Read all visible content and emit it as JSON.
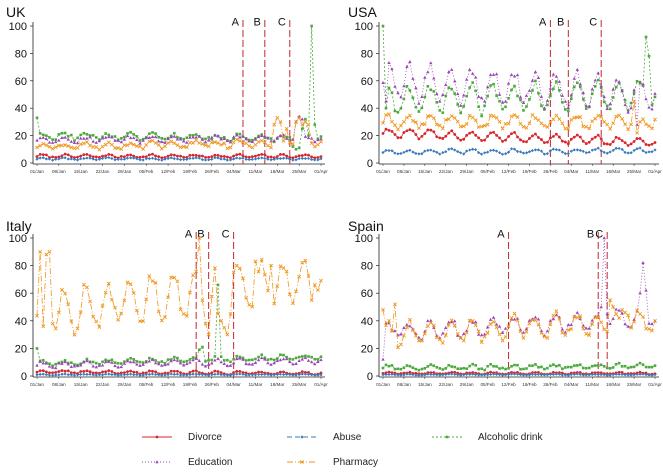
{
  "chart_data": [
    {
      "type": "line",
      "title": "UK",
      "ylim": [
        0,
        100
      ],
      "yticks": [
        0,
        20,
        40,
        60,
        80,
        100
      ],
      "xlabels": [
        "01/Jan",
        "08/Jan",
        "15/Jan",
        "22/Jan",
        "29/Jan",
        "05/Feb",
        "12/Feb",
        "19/Feb",
        "26/Feb",
        "04/Mar",
        "11/Mar",
        "18/Mar",
        "25/Mar",
        "01/Apr"
      ],
      "events": [
        {
          "label": "A",
          "day": 66
        },
        {
          "label": "B",
          "day": 73
        },
        {
          "label": "C",
          "day": 81
        }
      ],
      "series": [
        {
          "key": "divorce",
          "start": 5,
          "end": 5,
          "amp": 1,
          "period": 7,
          "noise": 0.6
        },
        {
          "key": "abuse",
          "start": 3,
          "end": 3,
          "amp": 0.6,
          "period": 7,
          "noise": 0.4
        },
        {
          "key": "alcohol",
          "start": 20,
          "end": 18,
          "amp": 2,
          "period": 7,
          "noise": 1.5,
          "overrides": [
            [
              0,
              33
            ],
            [
              82,
              12
            ],
            [
              83,
              10
            ],
            [
              84,
              11
            ],
            [
              85,
              25
            ],
            [
              86,
              32
            ],
            [
              87,
              20
            ],
            [
              88,
              100
            ],
            [
              89,
              28
            ]
          ]
        },
        {
          "key": "education",
          "start": 17,
          "end": 18,
          "amp": 2,
          "period": 7,
          "noise": 1.2,
          "overrides": [
            [
              83,
              30
            ],
            [
              84,
              34
            ],
            [
              85,
              32
            ]
          ]
        },
        {
          "key": "pharmacy",
          "start": 12,
          "end": 15,
          "amp": 2,
          "period": 7,
          "noise": 1.5,
          "overrides": [
            [
              76,
              28
            ],
            [
              77,
              33
            ],
            [
              78,
              30
            ],
            [
              80,
              25
            ],
            [
              83,
              30
            ],
            [
              84,
              33
            ],
            [
              85,
              28
            ],
            [
              86,
              30
            ],
            [
              87,
              28
            ]
          ]
        }
      ]
    },
    {
      "type": "line",
      "title": "USA",
      "ylim": [
        0,
        100
      ],
      "yticks": [
        0,
        20,
        40,
        60,
        80,
        100
      ],
      "xlabels": [
        "01/Jan",
        "08/Jan",
        "15/Jan",
        "22/Jan",
        "29/Jan",
        "05/Feb",
        "12/Feb",
        "19/Feb",
        "26/Feb",
        "04/Mar",
        "11/Mar",
        "18/Mar",
        "25/Mar",
        "01/Apr"
      ],
      "events": [
        {
          "label": "A",
          "day": 56
        },
        {
          "label": "B",
          "day": 62
        },
        {
          "label": "C",
          "day": 73
        }
      ],
      "series": [
        {
          "key": "divorce",
          "start": 22,
          "end": 15,
          "amp": 3,
          "period": 7,
          "noise": 1
        },
        {
          "key": "abuse",
          "start": 8,
          "end": 9,
          "amp": 1.5,
          "period": 7,
          "noise": 0.8
        },
        {
          "key": "alcohol",
          "start": 45,
          "end": 50,
          "amp": 10,
          "period": 7,
          "noise": 3,
          "overrides": [
            [
              0,
              100
            ],
            [
              1,
              40
            ],
            [
              88,
              92
            ],
            [
              89,
              78
            ]
          ]
        },
        {
          "key": "education",
          "start": 60,
          "end": 50,
          "amp": 12,
          "period": 7,
          "noise": 4,
          "overrides": [
            [
              1,
              45
            ],
            [
              85,
              28
            ]
          ]
        },
        {
          "key": "pharmacy",
          "start": 30,
          "end": 30,
          "amp": 4,
          "period": 7,
          "noise": 2,
          "overrides": [
            [
              84,
              45
            ],
            [
              85,
              22
            ],
            [
              86,
              30
            ]
          ]
        }
      ]
    },
    {
      "type": "line",
      "title": "Italy",
      "ylim": [
        0,
        100
      ],
      "yticks": [
        0,
        20,
        40,
        60,
        80,
        100
      ],
      "xlabels": [
        "01/Jan",
        "08/Jan",
        "15/Jan",
        "22/Jan",
        "29/Jan",
        "05/Feb",
        "12/Feb",
        "19/Feb",
        "26/Feb",
        "04/Mar",
        "11/Mar",
        "18/Mar",
        "25/Mar",
        "01/Apr"
      ],
      "events": [
        {
          "label": "A",
          "day": 51
        },
        {
          "label": "B",
          "day": 55
        },
        {
          "label": "C",
          "day": 63
        }
      ],
      "series": [
        {
          "key": "divorce",
          "start": 3,
          "end": 2,
          "amp": 1,
          "period": 7,
          "noise": 0.5
        },
        {
          "key": "abuse",
          "start": 1,
          "end": 1,
          "amp": 0.3,
          "period": 7,
          "noise": 0.2
        },
        {
          "key": "alcohol",
          "start": 9,
          "end": 14,
          "amp": 1.5,
          "period": 7,
          "noise": 1,
          "overrides": [
            [
              0,
              20
            ],
            [
              1,
              11
            ],
            [
              52,
              19
            ],
            [
              53,
              21
            ],
            [
              58,
              66
            ],
            [
              59,
              14
            ]
          ]
        },
        {
          "key": "education",
          "start": 8,
          "end": 11,
          "amp": 2,
          "period": 7,
          "noise": 1
        },
        {
          "key": "pharmacy",
          "start": 45,
          "end": 72,
          "amp": 15,
          "period": 7,
          "noise": 5,
          "overrides": [
            [
              1,
              90
            ],
            [
              2,
              36
            ],
            [
              3,
              88
            ],
            [
              4,
              90
            ],
            [
              5,
              38
            ],
            [
              52,
              100
            ],
            [
              53,
              55
            ],
            [
              54,
              38
            ],
            [
              55,
              30
            ],
            [
              58,
              45
            ],
            [
              59,
              40
            ],
            [
              60,
              35
            ],
            [
              61,
              30
            ],
            [
              62,
              45
            ],
            [
              63,
              75
            ],
            [
              64,
              80
            ],
            [
              65,
              78
            ],
            [
              70,
              83
            ],
            [
              75,
              80
            ],
            [
              88,
              55
            ],
            [
              89,
              66
            ]
          ]
        }
      ]
    },
    {
      "type": "line",
      "title": "Spain",
      "ylim": [
        0,
        100
      ],
      "yticks": [
        0,
        20,
        40,
        60,
        80,
        100
      ],
      "xlabels": [
        "01/Jan",
        "08/Jan",
        "15/Jan",
        "22/Jan",
        "29/Jan",
        "05/Feb",
        "12/Feb",
        "19/Feb",
        "26/Feb",
        "04/Mar",
        "11/Mar",
        "18/Mar",
        "25/Mar",
        "01/Apr"
      ],
      "events": [
        {
          "label": "A",
          "day": 42
        },
        {
          "label": "B",
          "day": 72
        },
        {
          "label": "C",
          "day": 75
        }
      ],
      "series": [
        {
          "key": "divorce",
          "start": 2,
          "end": 2,
          "amp": 0.6,
          "period": 7,
          "noise": 0.4
        },
        {
          "key": "abuse",
          "start": 1,
          "end": 1,
          "amp": 0.3,
          "period": 7,
          "noise": 0.2
        },
        {
          "key": "alcohol",
          "start": 6,
          "end": 7,
          "amp": 1.5,
          "period": 7,
          "noise": 1
        },
        {
          "key": "education",
          "start": 32,
          "end": 42,
          "amp": 6,
          "period": 7,
          "noise": 3,
          "overrides": [
            [
              0,
              12
            ],
            [
              73,
              50
            ],
            [
              74,
              100
            ],
            [
              75,
              45
            ],
            [
              86,
              60
            ],
            [
              87,
              82
            ],
            [
              88,
              62
            ],
            [
              89,
              38
            ]
          ]
        },
        {
          "key": "pharmacy",
          "start": 30,
          "end": 40,
          "amp": 8,
          "period": 7,
          "noise": 3,
          "overrides": [
            [
              0,
              48
            ],
            [
              2,
              40
            ],
            [
              4,
              52
            ],
            [
              76,
              55
            ],
            [
              77,
              50
            ],
            [
              78,
              45
            ],
            [
              79,
              42
            ],
            [
              80,
              48
            ],
            [
              81,
              46
            ],
            [
              82,
              44
            ]
          ]
        }
      ]
    }
  ],
  "legend": [
    {
      "key": "divorce",
      "label": "Divorce",
      "color": "#d7262e",
      "dash": "",
      "marker": "circle"
    },
    {
      "key": "abuse",
      "label": "Abuse",
      "color": "#3a7ab8",
      "dash": "5,3",
      "marker": "diamond"
    },
    {
      "key": "alcohol",
      "label": "Alcoholic drink",
      "color": "#4caa3c",
      "dash": "2,2",
      "marker": "square"
    },
    {
      "key": "education",
      "label": "Education",
      "color": "#9a44b8",
      "dash": "1,2",
      "marker": "triangle"
    },
    {
      "key": "pharmacy",
      "label": "Pharmacy",
      "color": "#f0961e",
      "dash": "6,2,1,2",
      "marker": "x"
    }
  ]
}
